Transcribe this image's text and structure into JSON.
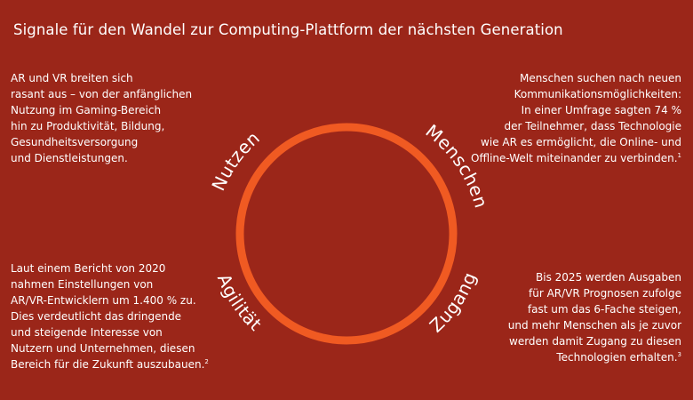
{
  "title": "Signale für den Wandel zur Computing-Plattform der nächsten Generation",
  "colors": {
    "background": "#9b2619",
    "circle": "#f05a22",
    "text": "#ffffff"
  },
  "quadrants": {
    "nutzen": {
      "label": "Nutzen",
      "lines": [
        "AR und VR breiten sich",
        "rasant aus – von der anfänglichen",
        "Nutzung im Gaming-Bereich",
        "hin zu Produktivität, Bildung,",
        "Gesundheitsversorgung",
        "und Dienstleistungen."
      ],
      "footnote": ""
    },
    "menschen": {
      "label": "Menschen",
      "lines": [
        "Menschen suchen nach neuen",
        "Kommunikationsmöglichkeiten:",
        "In einer Umfrage sagten 74 %",
        "der Teilnehmer, dass Technologie",
        "wie AR es ermöglicht, die Online- und",
        "Offline-Welt miteinander zu verbinden."
      ],
      "footnote": "1"
    },
    "agilitaet": {
      "label": "Agilität",
      "lines": [
        "Laut einem Bericht von 2020",
        "nahmen Einstellungen von",
        "AR/VR-Entwicklern um 1.400 % zu.",
        "Dies verdeutlicht das dringende",
        "und steigende Interesse von",
        "Nutzern und Unternehmen, diesen",
        "Bereich für die Zukunft auszubauen."
      ],
      "footnote": "2"
    },
    "zugang": {
      "label": "Zugang",
      "lines": [
        "Bis 2025 werden Ausgaben",
        "für AR/VR Prognosen zufolge",
        "fast um das 6-Fache steigen,",
        "und mehr Menschen als je zuvor",
        "werden damit Zugang zu diesen",
        "Technologien erhalten."
      ],
      "footnote": "3"
    }
  }
}
